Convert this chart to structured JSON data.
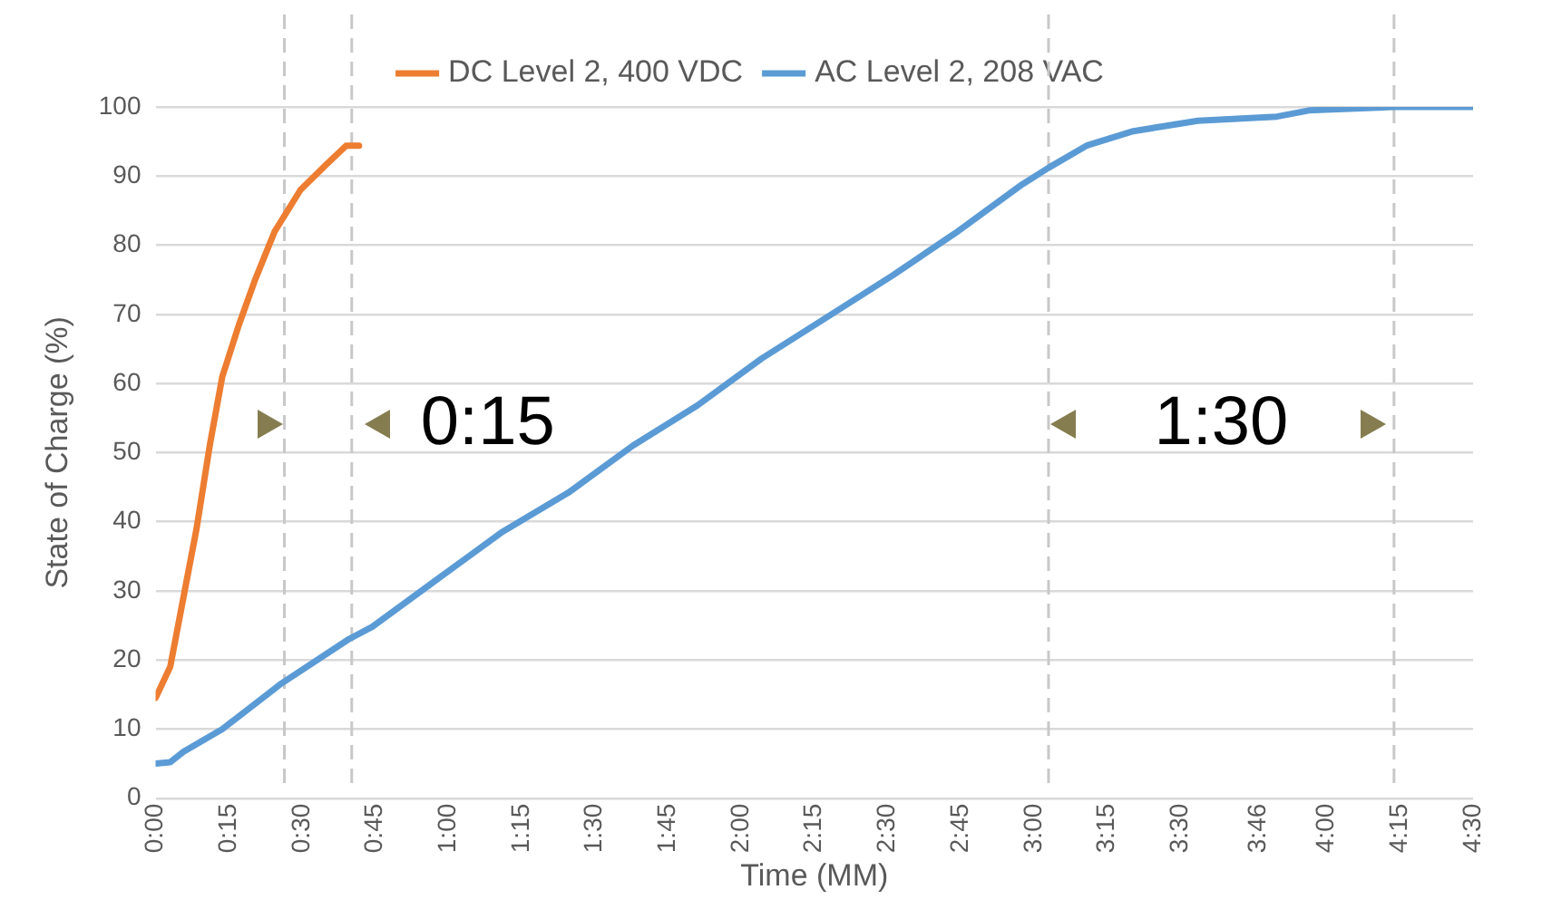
{
  "chart_data": {
    "type": "line",
    "xlabel": "Time (MM)",
    "ylabel": "State of Charge (%)",
    "xlim": [
      0,
      4.5
    ],
    "xticks": [
      {
        "value": 0,
        "label": "0:00"
      },
      {
        "value": 0.25,
        "label": "0:15"
      },
      {
        "value": 0.5,
        "label": "0:30"
      },
      {
        "value": 0.75,
        "label": "0:45"
      },
      {
        "value": 1,
        "label": "1:00"
      },
      {
        "value": 1.25,
        "label": "1:15"
      },
      {
        "value": 1.5,
        "label": "1:30"
      },
      {
        "value": 1.75,
        "label": "1:45"
      },
      {
        "value": 2,
        "label": "2:00"
      },
      {
        "value": 2.25,
        "label": "2:15"
      },
      {
        "value": 2.5,
        "label": "2:30"
      },
      {
        "value": 2.75,
        "label": "2:45"
      },
      {
        "value": 3,
        "label": "3:00"
      },
      {
        "value": 3.25,
        "label": "3:15"
      },
      {
        "value": 3.5,
        "label": "3:30"
      },
      {
        "value": 3.7667,
        "label": "3:46"
      },
      {
        "value": 4,
        "label": "4:00"
      },
      {
        "value": 4.25,
        "label": "4:15"
      },
      {
        "value": 4.5,
        "label": "4:30"
      }
    ],
    "ylim": [
      0,
      100
    ],
    "yticks": [
      0,
      10,
      20,
      30,
      40,
      50,
      60,
      70,
      80,
      90,
      100
    ],
    "grid": "y",
    "legend": "top",
    "marker": "none",
    "line_style": "solid",
    "series": [
      {
        "name": "DC Level 2, 400 VDC",
        "color": "#ed7d31",
        "x": [
          0,
          0.05,
          0.095,
          0.14,
          0.185,
          0.228,
          0.284,
          0.34,
          0.407,
          0.495,
          0.584,
          0.651,
          0.695
        ],
        "values": [
          14.5,
          19,
          29,
          39,
          51,
          61,
          68.4,
          75,
          82,
          88,
          91.7,
          94.4,
          94.4
        ]
      },
      {
        "name": "AC Level 2, 208 VAC",
        "color": "#5b9bd5",
        "x": [
          0,
          0.05,
          0.095,
          0.228,
          0.43,
          0.66,
          0.74,
          0.96,
          1.18,
          1.41,
          1.63,
          1.85,
          2.07,
          2.29,
          2.52,
          2.74,
          2.96,
          3.05,
          3.18,
          3.34,
          3.56,
          3.83,
          3.94,
          4.23,
          4.5
        ],
        "values": [
          5,
          5.2,
          6.7,
          10,
          16.6,
          23,
          24.8,
          31.6,
          38.4,
          44.2,
          51,
          56.8,
          63.6,
          69.5,
          75.7,
          82,
          88.8,
          91.2,
          94.4,
          96.5,
          98,
          98.6,
          99.5,
          100,
          100
        ]
      }
    ],
    "ref_lines": [
      {
        "axis": "x",
        "value": 0.44,
        "color": "#c8c8c8",
        "line_style": "dashed"
      },
      {
        "axis": "x",
        "value": 0.67,
        "color": "#c8c8c8",
        "line_style": "dashed"
      },
      {
        "axis": "x",
        "value": 3.05,
        "color": "#c8c8c8",
        "line_style": "dashed"
      },
      {
        "axis": "x",
        "value": 4.23,
        "color": "#c8c8c8",
        "line_style": "dashed"
      }
    ],
    "annotations": [
      "0:15",
      "1:30"
    ]
  }
}
